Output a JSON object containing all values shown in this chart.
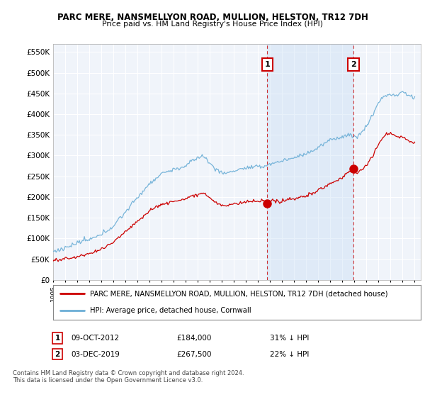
{
  "title": "PARC MERE, NANSMELLYON ROAD, MULLION, HELSTON, TR12 7DH",
  "subtitle": "Price paid vs. HM Land Registry's House Price Index (HPI)",
  "legend_line1": "PARC MERE, NANSMELLYON ROAD, MULLION, HELSTON, TR12 7DH (detached house)",
  "legend_line2": "HPI: Average price, detached house, Cornwall",
  "footer": "Contains HM Land Registry data © Crown copyright and database right 2024.\nThis data is licensed under the Open Government Licence v3.0.",
  "sale1_date": "09-OCT-2012",
  "sale1_price": "£184,000",
  "sale1_hpi": "31% ↓ HPI",
  "sale2_date": "03-DEC-2019",
  "sale2_price": "£267,500",
  "sale2_hpi": "22% ↓ HPI",
  "hpi_color": "#6baed6",
  "price_color": "#cc0000",
  "marker_color": "#cc0000",
  "sale1_x": 2012.77,
  "sale1_y": 184000,
  "sale2_x": 2019.92,
  "sale2_y": 267500,
  "ylim": [
    0,
    570000
  ],
  "xlim_start": 1995.0,
  "xlim_end": 2025.5,
  "yticks": [
    0,
    50000,
    100000,
    150000,
    200000,
    250000,
    300000,
    350000,
    400000,
    450000,
    500000,
    550000
  ],
  "background_color": "#ffffff",
  "plot_bg_color": "#f0f4fa",
  "grid_color": "#ffffff",
  "shade_color": "#cce0f5",
  "shade_alpha": 0.45,
  "vline_color": "#cc0000",
  "label_box_color": "#cc0000"
}
